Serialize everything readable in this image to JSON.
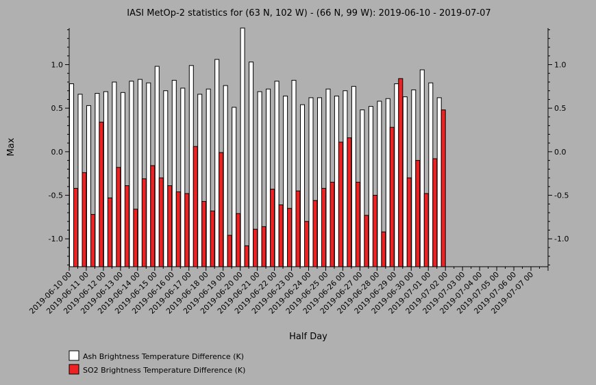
{
  "chart_data": {
    "type": "bar",
    "title": "IASI MetOp-2 statistics for (63 N, 102 W) - (66 N, 99 W): 2019-06-10 - 2019-07-07",
    "xlabel": "Half Day",
    "ylabel": "Max",
    "ylim": [
      -1.32,
      1.42
    ],
    "yticks": [
      {
        "value": 1.0,
        "label": "1.0"
      },
      {
        "value": 0.5,
        "label": "0.5"
      },
      {
        "value": 0.0,
        "label": "0.0"
      },
      {
        "value": -0.5,
        "label": "-0.5"
      },
      {
        "value": -1.0,
        "label": "-1.0"
      }
    ],
    "xtick_labels": [
      "2019-06-10 00",
      "2019-06-11 00",
      "2019-06-12 00",
      "2019-06-13 00",
      "2019-06-14 00",
      "2019-06-15 00",
      "2019-06-16 00",
      "2019-06-17 00",
      "2019-06-18 00",
      "2019-06-19 00",
      "2019-06-20 00",
      "2019-06-21 00",
      "2019-06-22 00",
      "2019-06-23 00",
      "2019-06-24 00",
      "2019-06-25 00",
      "2019-06-26 00",
      "2019-06-27 00",
      "2019-06-28 00",
      "2019-06-29 00",
      "2019-06-30 00",
      "2019-07-01 00",
      "2019-07-02 00",
      "2019-07-03 00",
      "2019-07-04 00",
      "2019-07-05 00",
      "2019-07-06 00",
      "2019-07-07 00"
    ],
    "n_slots": 56,
    "series": [
      {
        "name": "Ash Brightness Temperature Difference (K)",
        "color": "#ffffff",
        "values": [
          0.78,
          0.66,
          0.53,
          0.67,
          0.69,
          0.8,
          0.68,
          0.81,
          0.83,
          0.79,
          0.98,
          0.7,
          0.82,
          0.73,
          0.99,
          0.66,
          0.72,
          1.06,
          0.76,
          0.51,
          1.42,
          1.03,
          0.69,
          0.72,
          0.81,
          0.64,
          0.82,
          0.54,
          0.62,
          0.62,
          0.72,
          0.64,
          0.7,
          0.75,
          0.48,
          0.52,
          0.58,
          0.61,
          0.78,
          0.63,
          0.71,
          0.94,
          0.79,
          0.62
        ]
      },
      {
        "name": "SO2 Brightness Temperature Difference (K)",
        "color": "#ee2222",
        "values": [
          -0.42,
          -0.24,
          -0.72,
          0.34,
          -0.53,
          -0.18,
          -0.39,
          -0.66,
          -0.31,
          -0.16,
          -0.3,
          -0.39,
          -0.46,
          -0.48,
          0.06,
          -0.57,
          -0.68,
          -0.01,
          -0.96,
          -0.71,
          -1.08,
          -0.89,
          -0.86,
          -0.43,
          -0.61,
          -0.65,
          -0.45,
          -0.8,
          -0.56,
          -0.42,
          -0.35,
          0.11,
          0.16,
          -0.35,
          -0.73,
          -0.5,
          -0.92,
          0.28,
          0.84,
          -0.3,
          -0.1,
          -0.48,
          -0.08,
          0.48
        ]
      }
    ],
    "legend_position": "bottom-left",
    "grid": false
  }
}
